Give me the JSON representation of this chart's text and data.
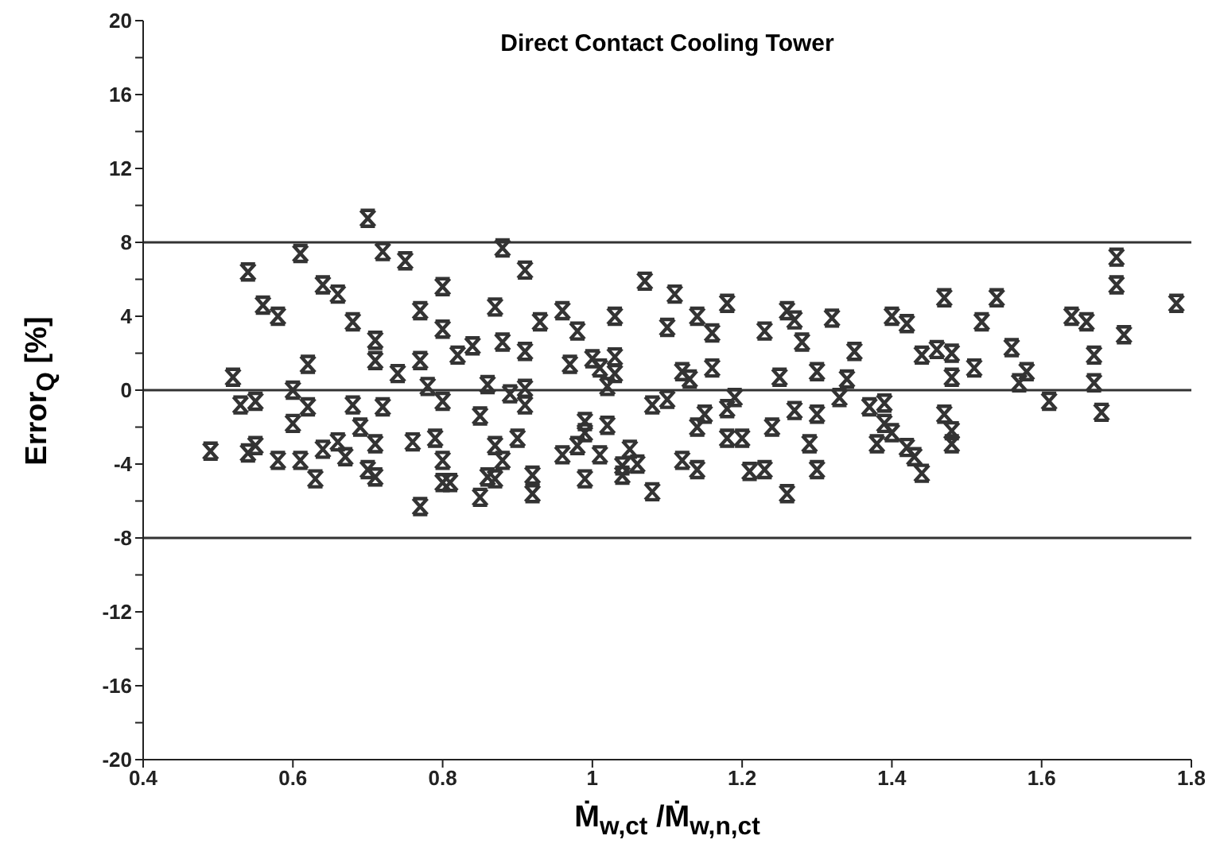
{
  "chart_data": {
    "type": "scatter",
    "title": "Direct Contact Cooling Tower",
    "xlabel": "Ṁ$_{w,ct}$ /Ṁ$_{w,n,ct}$",
    "ylabel": "Error$_{Q}$ [%]",
    "marker": "cross",
    "xlim": [
      0.4,
      1.8
    ],
    "xticks": [
      0.4,
      0.6,
      0.8,
      1,
      1.2,
      1.4,
      1.6,
      1.8
    ],
    "ylim": [
      -20,
      20
    ],
    "yticks": [
      -20,
      {
        "value": -18,
        "label": null
      },
      -16,
      {
        "value": -14,
        "label": null
      },
      -12,
      {
        "value": -10,
        "label": null
      },
      -8,
      {
        "value": -6,
        "label": null
      },
      -4,
      {
        "value": -2,
        "label": null
      },
      0,
      {
        "value": 2,
        "label": null
      },
      4,
      {
        "value": 6,
        "label": null
      },
      8,
      {
        "value": 10,
        "label": null
      },
      12,
      {
        "value": 14,
        "label": null
      },
      16,
      {
        "value": 18,
        "label": null
      },
      20
    ],
    "ref_lines": [
      {
        "axis": "y",
        "value": 8,
        "color": "#333333"
      },
      {
        "axis": "y",
        "value": 0,
        "color": "#333333"
      },
      {
        "axis": "y",
        "value": -8,
        "color": "#333333"
      }
    ],
    "series": [
      {
        "color": "#333333",
        "x": [
          0.7,
          0.61,
          0.72,
          0.75,
          0.54,
          0.64,
          0.66,
          0.8,
          0.56,
          0.58,
          0.68,
          0.77,
          0.71,
          0.8,
          0.62,
          0.71,
          0.52,
          0.74,
          0.77,
          0.82,
          0.84,
          0.6,
          0.53,
          0.55,
          0.62,
          0.68,
          0.72,
          0.78,
          0.8,
          0.86,
          0.6,
          0.69,
          0.71,
          0.66,
          0.76,
          0.79,
          0.85,
          0.49,
          0.54,
          0.55,
          0.58,
          0.61,
          0.64,
          0.67,
          0.7,
          0.71,
          0.63,
          0.8,
          0.8,
          0.81,
          0.77,
          0.85,
          0.86,
          0.88,
          0.91,
          0.87,
          0.88,
          0.91,
          0.93,
          0.96,
          0.98,
          1.03,
          1.07,
          1.11,
          1.1,
          1.14,
          1.16,
          1.18,
          1.23,
          1.26,
          1.27,
          1.28,
          1.32,
          0.97,
          1,
          1.01,
          1.03,
          1.03,
          1.02,
          1.12,
          1.13,
          1.16,
          1.25,
          1.3,
          0.89,
          0.91,
          0.91,
          1.08,
          1.1,
          1.19,
          1.18,
          1.33,
          1.27,
          1.3,
          0.99,
          0.99,
          1.02,
          1.14,
          1.15,
          1.18,
          1.2,
          1.24,
          1.29,
          0.87,
          0.9,
          0.88,
          0.98,
          0.96,
          1.01,
          1.05,
          1.04,
          1.06,
          1.04,
          1.12,
          1.14,
          1.21,
          1.23,
          1.3,
          0.92,
          0.92,
          0.99,
          0.87,
          1.08,
          1.26,
          1.7,
          1.7,
          1.78,
          1.4,
          1.42,
          1.47,
          1.54,
          1.52,
          1.64,
          1.66,
          1.71,
          1.35,
          1.44,
          1.46,
          1.48,
          1.48,
          1.51,
          1.56,
          1.58,
          1.57,
          1.67,
          1.67,
          1.34,
          1.61,
          1.68,
          1.37,
          1.39,
          1.39,
          1.4,
          1.38,
          1.42,
          1.43,
          1.44,
          1.47,
          1.48,
          1.48
        ],
        "values": [
          9.3,
          7.4,
          7.5,
          7,
          6.4,
          5.7,
          5.2,
          5.6,
          4.6,
          4,
          3.7,
          4.3,
          2.7,
          3.3,
          1.4,
          1.6,
          0.7,
          0.9,
          1.6,
          1.9,
          2.4,
          0,
          -0.8,
          -0.6,
          -0.9,
          -0.8,
          -0.9,
          0.2,
          -0.6,
          0.3,
          -1.8,
          -2,
          -2.9,
          -2.8,
          -2.8,
          -2.6,
          -1.4,
          -3.3,
          -3.4,
          -3,
          -3.8,
          -3.8,
          -3.2,
          -3.6,
          -4.3,
          -4.7,
          -4.8,
          -3.8,
          -5,
          -5,
          -6.3,
          -5.8,
          -4.7,
          7.7,
          6.5,
          4.5,
          2.6,
          2.1,
          3.7,
          4.3,
          3.2,
          4,
          5.9,
          5.2,
          3.4,
          4,
          3.1,
          4.7,
          3.2,
          4.3,
          3.8,
          2.6,
          3.9,
          1.4,
          1.7,
          1.2,
          1.8,
          0.9,
          0.2,
          1,
          0.6,
          1.2,
          0.7,
          1,
          -0.2,
          0.1,
          -0.8,
          -0.8,
          -0.5,
          -0.4,
          -1,
          -0.4,
          -1.1,
          -1.3,
          -1.7,
          -2.3,
          -1.9,
          -2,
          -1.3,
          -2.6,
          -2.6,
          -2,
          -2.9,
          -3,
          -2.6,
          -3.8,
          -3,
          -3.5,
          -3.5,
          -3.2,
          -4.1,
          -4,
          -4.6,
          -3.8,
          -4.3,
          -4.4,
          -4.3,
          -4.3,
          -4.6,
          -5.6,
          -4.8,
          -4.8,
          -5.5,
          -5.6,
          7.2,
          5.7,
          4.7,
          4,
          3.6,
          5,
          5,
          3.7,
          4,
          3.7,
          3,
          2.1,
          1.9,
          2.2,
          2,
          0.7,
          1.2,
          2.3,
          1,
          0.4,
          1.9,
          0.4,
          0.6,
          -0.6,
          -1.2,
          -0.9,
          -0.7,
          -1.8,
          -2.3,
          -2.9,
          -3.1,
          -3.6,
          -4.5,
          -1.3,
          -2.2,
          -2.9
        ]
      }
    ]
  }
}
